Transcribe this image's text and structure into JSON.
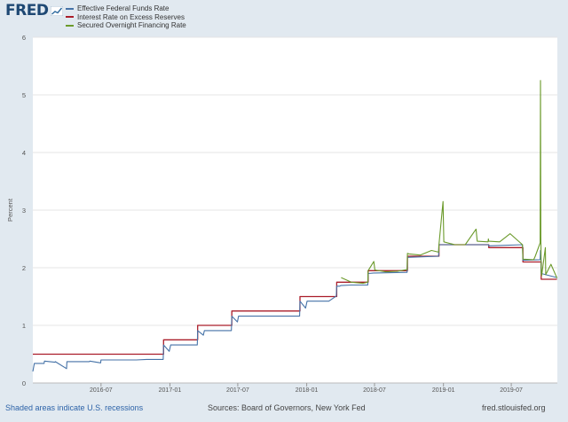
{
  "header": {
    "logo_text": "FRED",
    "logo_icon": "chart-line-icon"
  },
  "legend": [
    {
      "label": "Effective Federal Funds Rate",
      "color": "#4572a7"
    },
    {
      "label": "Interest Rate on Excess Reserves",
      "color": "#aa1d2a"
    },
    {
      "label": "Secured Overnight Financing Rate",
      "color": "#6b9a2b"
    }
  ],
  "footer": {
    "recessions_note": "Shaded areas indicate U.S. recessions",
    "sources": "Sources: Board of Governors, New York Fed",
    "site": "fred.stlouisfed.org"
  },
  "chart_data": {
    "type": "line",
    "ylabel": "Percent",
    "ylim": [
      0,
      6
    ],
    "yticks": [
      "0",
      "1",
      "2",
      "3",
      "4",
      "5",
      "6"
    ],
    "xlim": [
      "2016-01-01",
      "2019-11-01"
    ],
    "xticks": [
      {
        "date": "2016-07-01",
        "label": "2016-07"
      },
      {
        "date": "2017-01-01",
        "label": "2017-01"
      },
      {
        "date": "2017-07-01",
        "label": "2017-07"
      },
      {
        "date": "2018-01-01",
        "label": "2018-01"
      },
      {
        "date": "2018-07-01",
        "label": "2018-07"
      },
      {
        "date": "2019-01-01",
        "label": "2019-01"
      },
      {
        "date": "2019-07-01",
        "label": "2019-07"
      }
    ],
    "grid": true,
    "series": [
      {
        "name": "Interest Rate on Excess Reserves",
        "color": "#aa1d2a",
        "step": true,
        "x": [
          "2016-01-01",
          "2016-12-15",
          "2017-03-16",
          "2017-06-15",
          "2017-12-14",
          "2018-03-22",
          "2018-06-14",
          "2018-09-27",
          "2018-12-20",
          "2019-05-02",
          "2019-08-01",
          "2019-09-19",
          "2019-10-31"
        ],
        "values": [
          0.5,
          0.75,
          1.0,
          1.25,
          1.5,
          1.75,
          1.95,
          2.2,
          2.4,
          2.35,
          2.1,
          1.8,
          1.8
        ]
      },
      {
        "name": "Effective Federal Funds Rate",
        "color": "#4572a7",
        "x": [
          "2016-01-01",
          "2016-01-05",
          "2016-01-31",
          "2016-02-01",
          "2016-02-29",
          "2016-03-01",
          "2016-03-31",
          "2016-04-01",
          "2016-04-29",
          "2016-05-02",
          "2016-05-31",
          "2016-06-01",
          "2016-06-30",
          "2016-07-01",
          "2016-07-29",
          "2016-08-01",
          "2016-08-31",
          "2016-09-01",
          "2016-09-30",
          "2016-10-03",
          "2016-10-31",
          "2016-11-01",
          "2016-11-30",
          "2016-12-01",
          "2016-12-14",
          "2016-12-15",
          "2016-12-30",
          "2017-01-03",
          "2017-01-31",
          "2017-02-01",
          "2017-02-28",
          "2017-03-01",
          "2017-03-15",
          "2017-03-16",
          "2017-03-31",
          "2017-04-03",
          "2017-04-28",
          "2017-05-01",
          "2017-05-31",
          "2017-06-01",
          "2017-06-14",
          "2017-06-15",
          "2017-06-30",
          "2017-07-03",
          "2017-07-31",
          "2017-08-01",
          "2017-08-31",
          "2017-09-01",
          "2017-09-29",
          "2017-10-02",
          "2017-10-31",
          "2017-11-01",
          "2017-11-30",
          "2017-12-01",
          "2017-12-13",
          "2017-12-14",
          "2017-12-29",
          "2018-01-02",
          "2018-01-31",
          "2018-02-01",
          "2018-02-28",
          "2018-03-01",
          "2018-03-21",
          "2018-03-22",
          "2018-03-30",
          "2018-04-02",
          "2018-04-30",
          "2018-05-01",
          "2018-05-31",
          "2018-06-01",
          "2018-06-13",
          "2018-06-14",
          "2018-06-29",
          "2018-07-02",
          "2018-09-26",
          "2018-09-27",
          "2018-12-19",
          "2018-12-20",
          "2019-05-01",
          "2019-05-02",
          "2019-07-31",
          "2019-08-01",
          "2019-09-16",
          "2019-09-17",
          "2019-09-18",
          "2019-09-19",
          "2019-10-31"
        ],
        "values": [
          0.2,
          0.34,
          0.34,
          0.38,
          0.36,
          0.37,
          0.25,
          0.37,
          0.37,
          0.37,
          0.37,
          0.38,
          0.35,
          0.4,
          0.4,
          0.4,
          0.4,
          0.4,
          0.4,
          0.4,
          0.41,
          0.41,
          0.41,
          0.41,
          0.41,
          0.66,
          0.55,
          0.66,
          0.66,
          0.66,
          0.66,
          0.66,
          0.66,
          0.91,
          0.83,
          0.91,
          0.91,
          0.91,
          0.91,
          0.91,
          0.91,
          1.16,
          1.06,
          1.16,
          1.16,
          1.16,
          1.16,
          1.16,
          1.16,
          1.16,
          1.16,
          1.16,
          1.16,
          1.16,
          1.16,
          1.42,
          1.3,
          1.42,
          1.42,
          1.42,
          1.42,
          1.42,
          1.51,
          1.68,
          1.68,
          1.69,
          1.7,
          1.7,
          1.7,
          1.7,
          1.7,
          1.9,
          1.91,
          1.91,
          1.92,
          2.18,
          2.2,
          2.4,
          2.4,
          2.38,
          2.4,
          2.13,
          2.14,
          2.3,
          2.25,
          1.9,
          1.83
        ]
      },
      {
        "name": "Secured Overnight Financing Rate",
        "color": "#6b9a2b",
        "x": [
          "2018-04-03",
          "2018-04-30",
          "2018-05-31",
          "2018-06-13",
          "2018-06-14",
          "2018-06-29",
          "2018-07-02",
          "2018-07-31",
          "2018-08-31",
          "2018-09-26",
          "2018-09-27",
          "2018-10-01",
          "2018-10-31",
          "2018-11-30",
          "2018-12-19",
          "2018-12-20",
          "2018-12-31",
          "2019-01-02",
          "2019-01-31",
          "2019-02-28",
          "2019-03-29",
          "2019-04-01",
          "2019-04-30",
          "2019-05-01",
          "2019-05-02",
          "2019-05-31",
          "2019-06-28",
          "2019-07-31",
          "2019-08-01",
          "2019-08-30",
          "2019-09-03",
          "2019-09-16",
          "2019-09-17",
          "2019-09-18",
          "2019-09-19",
          "2019-09-20",
          "2019-09-30",
          "2019-10-01",
          "2019-10-15",
          "2019-10-31"
        ],
        "values": [
          1.83,
          1.75,
          1.73,
          1.75,
          1.95,
          2.11,
          1.96,
          1.93,
          1.94,
          1.97,
          2.25,
          2.24,
          2.22,
          2.3,
          2.27,
          2.4,
          3.15,
          2.45,
          2.4,
          2.4,
          2.67,
          2.46,
          2.45,
          2.5,
          2.46,
          2.45,
          2.59,
          2.4,
          2.15,
          2.14,
          2.2,
          2.43,
          5.25,
          2.55,
          1.95,
          1.86,
          2.35,
          1.88,
          2.06,
          1.82
        ]
      }
    ]
  }
}
